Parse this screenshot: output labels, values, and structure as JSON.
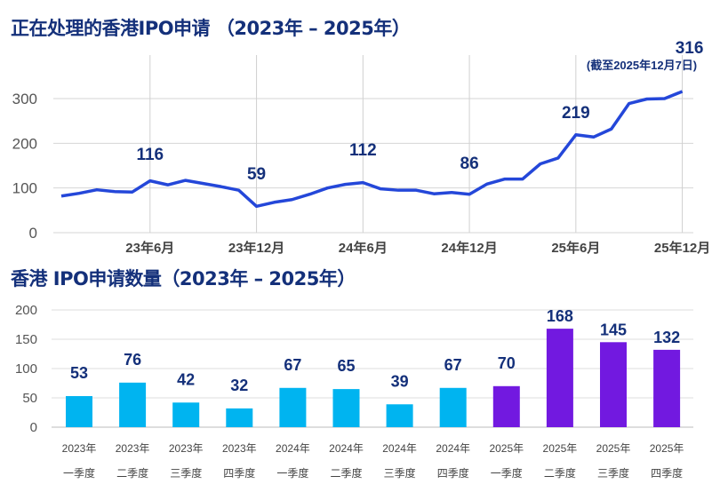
{
  "chart_data": [
    {
      "type": "line",
      "title": "正在处理的香港IPO申请 （2023年 – 2025年）",
      "x": [
        "23年1月",
        "23年2月",
        "23年3月",
        "23年4月",
        "23年5月",
        "23年6月",
        "23年7月",
        "23年8月",
        "23年9月",
        "23年10月",
        "23年11月",
        "23年12月",
        "24年1月",
        "24年2月",
        "24年3月",
        "24年4月",
        "24年5月",
        "24年6月",
        "24年7月",
        "24年8月",
        "24年9月",
        "24年10月",
        "24年11月",
        "24年12月",
        "25年1月",
        "25年2月",
        "25年3月",
        "25年4月",
        "25年5月",
        "25年6月",
        "25年7月",
        "25年8月",
        "25年9月",
        "25年10月",
        "25年11月",
        "25年12月"
      ],
      "values": [
        82,
        88,
        96,
        92,
        91,
        116,
        107,
        117,
        110,
        103,
        95,
        59,
        68,
        74,
        86,
        100,
        108,
        112,
        98,
        95,
        95,
        87,
        90,
        86,
        109,
        120,
        120,
        154,
        167,
        219,
        214,
        232,
        289,
        299,
        300,
        316
      ],
      "xticks": [
        "23年6月",
        "23年12月",
        "24年6月",
        "24年12月",
        "25年6月",
        "25年12月"
      ],
      "yticks": [
        "0",
        "100",
        "200",
        "300"
      ],
      "ylim": [
        0,
        330
      ],
      "grid": true,
      "annotations": [
        {
          "index": 5,
          "label": "116"
        },
        {
          "index": 11,
          "label": "59"
        },
        {
          "index": 17,
          "label": "112"
        },
        {
          "index": 23,
          "label": "86"
        },
        {
          "index": 29,
          "label": "219"
        },
        {
          "index": 35,
          "label": "316"
        }
      ],
      "note": "(截至2025年12月7日)",
      "color": "#2447d9"
    },
    {
      "type": "bar",
      "title": "香港 IPO申请数量（2023年 – 2025年）",
      "categories": [
        [
          "2023年",
          "一季度"
        ],
        [
          "2023年",
          "二季度"
        ],
        [
          "2023年",
          "三季度"
        ],
        [
          "2023年",
          "四季度"
        ],
        [
          "2024年",
          "一季度"
        ],
        [
          "2024年",
          "二季度"
        ],
        [
          "2024年",
          "三季度"
        ],
        [
          "2024年",
          "四季度"
        ],
        [
          "2025年",
          "一季度"
        ],
        [
          "2025年",
          "二季度"
        ],
        [
          "2025年",
          "三季度"
        ],
        [
          "2025年",
          "四季度"
        ]
      ],
      "values": [
        53,
        76,
        42,
        32,
        67,
        65,
        39,
        67,
        70,
        168,
        145,
        132
      ],
      "yticks": [
        "0",
        "50",
        "100",
        "150",
        "200"
      ],
      "ylim": [
        0,
        200
      ],
      "grid": true,
      "colors": {
        "2023-2024": "#00b4f0",
        "2025": "#7219e0"
      }
    }
  ]
}
